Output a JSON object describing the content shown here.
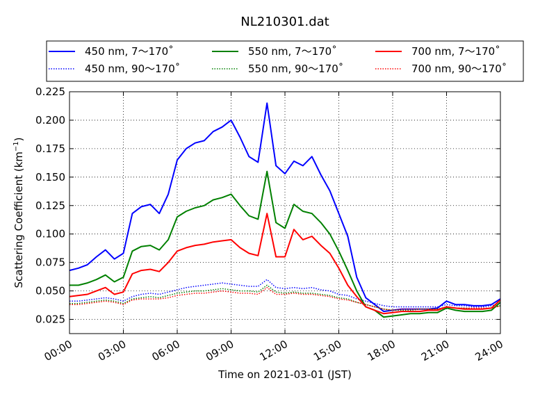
{
  "chart_data": {
    "type": "line",
    "title": "NL210301.dat",
    "xlabel": "Time on 2021-03-01 (JST)",
    "ylabel_main": "Scattering Coefficient (km",
    "ylabel_sup": "−1",
    "ylabel_close": ")",
    "xlim_hours": [
      0,
      24
    ],
    "ylim": [
      0.0125,
      0.225
    ],
    "grid": true,
    "grid_style": "dotted",
    "legend_placement": "top, above plot, 3 columns",
    "xticks": [
      {
        "h": 0,
        "label": "00:00"
      },
      {
        "h": 3,
        "label": "03:00"
      },
      {
        "h": 6,
        "label": "06:00"
      },
      {
        "h": 9,
        "label": "09:00"
      },
      {
        "h": 12,
        "label": "12:00"
      },
      {
        "h": 15,
        "label": "15:00"
      },
      {
        "h": 18,
        "label": "18:00"
      },
      {
        "h": 21,
        "label": "21:00"
      },
      {
        "h": 24,
        "label": "24:00"
      }
    ],
    "yticks": [
      {
        "v": 0.025,
        "label": "0.025"
      },
      {
        "v": 0.05,
        "label": "0.050"
      },
      {
        "v": 0.075,
        "label": "0.075"
      },
      {
        "v": 0.1,
        "label": "0.100"
      },
      {
        "v": 0.125,
        "label": "0.125"
      },
      {
        "v": 0.15,
        "label": "0.150"
      },
      {
        "v": 0.175,
        "label": "0.175"
      },
      {
        "v": 0.2,
        "label": "0.200"
      },
      {
        "v": 0.225,
        "label": "0.225"
      }
    ],
    "x": [
      "00:00",
      "00:30",
      "01:00",
      "01:30",
      "02:00",
      "02:30",
      "03:00",
      "03:30",
      "04:00",
      "04:30",
      "05:00",
      "05:30",
      "06:00",
      "06:30",
      "07:00",
      "07:30",
      "08:00",
      "08:30",
      "09:00",
      "09:30",
      "10:00",
      "10:30",
      "11:00",
      "11:30",
      "12:00",
      "12:30",
      "13:00",
      "13:30",
      "14:00",
      "14:30",
      "15:00",
      "15:30",
      "16:00",
      "16:30",
      "17:00",
      "17:30",
      "18:00",
      "18:30",
      "19:00",
      "19:30",
      "20:00",
      "20:30",
      "21:00",
      "21:30",
      "22:00",
      "22:30",
      "23:00",
      "23:30",
      "24:00"
    ],
    "series": [
      {
        "name": "450 nm, 7～170˚",
        "color": "#0000ff",
        "dash": "solid",
        "values": [
          0.068,
          0.07,
          0.073,
          0.08,
          0.086,
          0.078,
          0.083,
          0.118,
          0.124,
          0.126,
          0.118,
          0.135,
          0.165,
          0.175,
          0.18,
          0.182,
          0.19,
          0.194,
          0.2,
          0.185,
          0.168,
          0.163,
          0.215,
          0.16,
          0.153,
          0.164,
          0.16,
          0.168,
          0.152,
          0.138,
          0.118,
          0.098,
          0.062,
          0.044,
          0.038,
          0.032,
          0.033,
          0.034,
          0.034,
          0.034,
          0.034,
          0.035,
          0.041,
          0.038,
          0.038,
          0.037,
          0.037,
          0.038,
          0.043
        ]
      },
      {
        "name": "450 nm, 90～170˚",
        "color": "#0000ff",
        "dash": "dotted",
        "values": [
          0.041,
          0.041,
          0.042,
          0.043,
          0.044,
          0.043,
          0.041,
          0.045,
          0.047,
          0.048,
          0.047,
          0.049,
          0.051,
          0.053,
          0.054,
          0.055,
          0.056,
          0.057,
          0.056,
          0.055,
          0.054,
          0.054,
          0.06,
          0.053,
          0.052,
          0.053,
          0.052,
          0.053,
          0.051,
          0.05,
          0.047,
          0.046,
          0.043,
          0.041,
          0.039,
          0.037,
          0.036,
          0.036,
          0.036,
          0.036,
          0.036,
          0.036,
          0.038,
          0.037,
          0.037,
          0.036,
          0.036,
          0.037,
          0.039
        ]
      },
      {
        "name": "550 nm, 7～170˚",
        "color": "#008000",
        "dash": "solid",
        "values": [
          0.055,
          0.055,
          0.057,
          0.06,
          0.064,
          0.058,
          0.062,
          0.085,
          0.089,
          0.09,
          0.086,
          0.095,
          0.115,
          0.12,
          0.123,
          0.125,
          0.13,
          0.132,
          0.135,
          0.125,
          0.116,
          0.113,
          0.155,
          0.11,
          0.105,
          0.126,
          0.12,
          0.118,
          0.11,
          0.1,
          0.085,
          0.068,
          0.05,
          0.036,
          0.033,
          0.027,
          0.028,
          0.029,
          0.03,
          0.03,
          0.031,
          0.031,
          0.035,
          0.033,
          0.032,
          0.032,
          0.032,
          0.033,
          0.04
        ]
      },
      {
        "name": "550 nm, 90～170˚",
        "color": "#008000",
        "dash": "dotted",
        "values": [
          0.039,
          0.039,
          0.04,
          0.041,
          0.042,
          0.041,
          0.039,
          0.043,
          0.044,
          0.045,
          0.044,
          0.046,
          0.048,
          0.049,
          0.05,
          0.05,
          0.051,
          0.052,
          0.051,
          0.05,
          0.05,
          0.049,
          0.055,
          0.049,
          0.048,
          0.049,
          0.048,
          0.048,
          0.047,
          0.046,
          0.044,
          0.043,
          0.04,
          0.038,
          0.036,
          0.034,
          0.033,
          0.033,
          0.033,
          0.034,
          0.034,
          0.034,
          0.036,
          0.035,
          0.035,
          0.034,
          0.034,
          0.035,
          0.037
        ]
      },
      {
        "name": "700 nm, 7～170˚",
        "color": "#ff0000",
        "dash": "solid",
        "values": [
          0.045,
          0.046,
          0.047,
          0.05,
          0.053,
          0.047,
          0.049,
          0.065,
          0.068,
          0.069,
          0.067,
          0.075,
          0.085,
          0.088,
          0.09,
          0.091,
          0.093,
          0.094,
          0.095,
          0.088,
          0.083,
          0.081,
          0.118,
          0.08,
          0.08,
          0.104,
          0.095,
          0.098,
          0.09,
          0.083,
          0.07,
          0.055,
          0.045,
          0.036,
          0.033,
          0.03,
          0.031,
          0.032,
          0.032,
          0.032,
          0.033,
          0.033,
          0.036,
          0.035,
          0.034,
          0.034,
          0.034,
          0.035,
          0.042
        ]
      },
      {
        "name": "700 nm, 90～170˚",
        "color": "#ff0000",
        "dash": "dotted",
        "values": [
          0.038,
          0.038,
          0.039,
          0.04,
          0.041,
          0.04,
          0.038,
          0.042,
          0.043,
          0.043,
          0.043,
          0.044,
          0.046,
          0.047,
          0.048,
          0.048,
          0.049,
          0.05,
          0.049,
          0.048,
          0.048,
          0.047,
          0.053,
          0.047,
          0.047,
          0.048,
          0.047,
          0.047,
          0.046,
          0.045,
          0.043,
          0.042,
          0.04,
          0.038,
          0.036,
          0.034,
          0.033,
          0.034,
          0.034,
          0.034,
          0.034,
          0.034,
          0.036,
          0.035,
          0.035,
          0.035,
          0.035,
          0.035,
          0.037
        ]
      }
    ]
  }
}
